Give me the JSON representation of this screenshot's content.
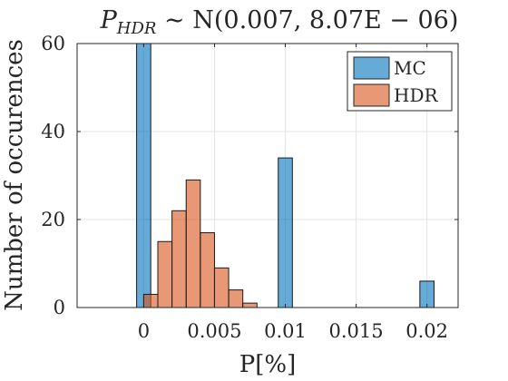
{
  "chart_data": {
    "type": "bar",
    "title": "P_HDR ~ N(0.007,8.07E−06)",
    "title_parts": {
      "var": "P",
      "sub": "HDR",
      "rest": " ∼ N(0.007, 8.07E − 06)"
    },
    "xlabel": "P[%]",
    "ylabel": "Number of occurences",
    "xlim": [
      -0.0047,
      0.0222
    ],
    "ylim": [
      0,
      60
    ],
    "x_ticks": [
      0,
      0.005,
      0.01,
      0.015,
      0.02
    ],
    "x_tick_labels": [
      "0",
      "0.005",
      "0.01",
      "0.015",
      "0.02"
    ],
    "y_ticks": [
      0,
      20,
      40,
      60
    ],
    "y_tick_labels": [
      "0",
      "20",
      "40",
      "60"
    ],
    "grid": true,
    "legend_position": "top-right",
    "series": [
      {
        "name": "MC",
        "color": "#0072BD",
        "bins": [
          {
            "x0": -0.0005,
            "x1": 0.0005,
            "count": 60
          },
          {
            "x0": 0.0095,
            "x1": 0.0105,
            "count": 34
          },
          {
            "x0": 0.0195,
            "x1": 0.0205,
            "count": 6
          }
        ]
      },
      {
        "name": "HDR",
        "color": "#D95319",
        "bins": [
          {
            "x0": 0.0,
            "x1": 0.001,
            "count": 3
          },
          {
            "x0": 0.001,
            "x1": 0.002,
            "count": 15
          },
          {
            "x0": 0.002,
            "x1": 0.003,
            "count": 22
          },
          {
            "x0": 0.003,
            "x1": 0.004,
            "count": 29
          },
          {
            "x0": 0.004,
            "x1": 0.005,
            "count": 17
          },
          {
            "x0": 0.005,
            "x1": 0.006,
            "count": 9
          },
          {
            "x0": 0.006,
            "x1": 0.007,
            "count": 4
          },
          {
            "x0": 0.007,
            "x1": 0.008,
            "count": 1
          }
        ]
      }
    ]
  }
}
